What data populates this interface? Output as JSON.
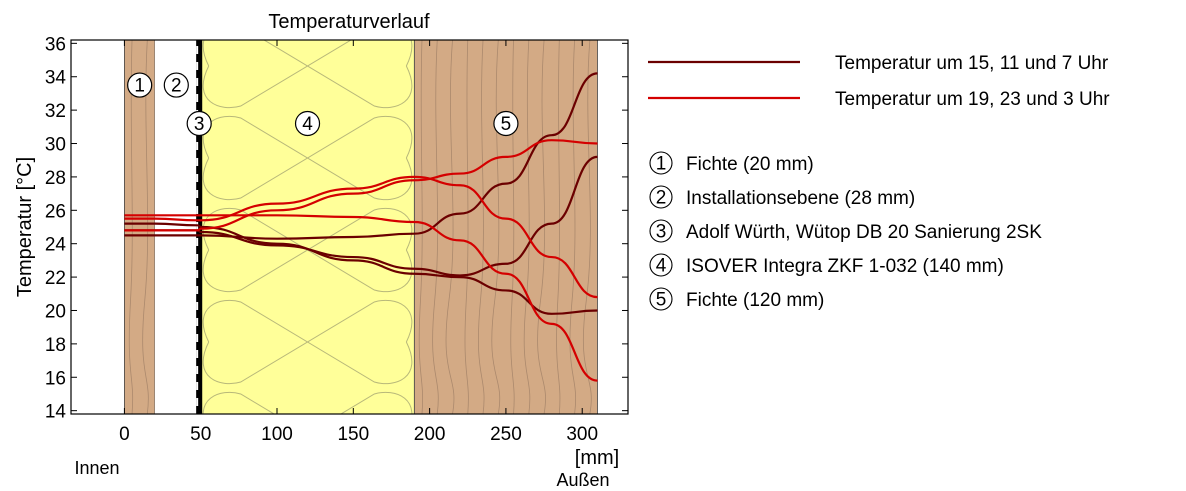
{
  "chart_data": {
    "type": "line",
    "title": "Temperaturverlauf",
    "xlabel": "[mm]",
    "ylabel": "Temperatur [°C]",
    "x_left_label": "Innen",
    "x_right_label": "Außen",
    "xlim": [
      -35,
      330
    ],
    "ylim": [
      13.8,
      36.2
    ],
    "xticks": [
      0,
      50,
      100,
      150,
      200,
      250,
      300
    ],
    "yticks": [
      14,
      16,
      18,
      20,
      22,
      24,
      26,
      28,
      30,
      32,
      34,
      36
    ],
    "grid": false,
    "legend_position": "right",
    "layers": [
      {
        "id": "1",
        "name": "Fichte (20 mm)",
        "x_range": [
          0,
          20
        ],
        "fill": "#d3aa85"
      },
      {
        "id": "2",
        "name": "Installationsebene (28 mm)",
        "x_range": [
          20,
          48
        ],
        "fill": "#ffffff"
      },
      {
        "id": "3",
        "name": "Adolf Würth, Wütop DB 20 Sanierung 2SK",
        "x_range": [
          48,
          50
        ],
        "fill": "#000000"
      },
      {
        "id": "4",
        "name": "ISOVER Integra ZKF 1-032 (140 mm)",
        "x_range": [
          50,
          190
        ],
        "fill": "#ffff99"
      },
      {
        "id": "5",
        "name": "Fichte (120 mm)",
        "x_range": [
          190,
          310
        ],
        "fill": "#d3aa85"
      }
    ],
    "series": [
      {
        "name": "Temperatur um 15, 11 und 7 Uhr",
        "color": "#6b0000",
        "lines": [
          {
            "x": [
              0,
              20,
              48,
              50,
              100,
              150,
              190,
              220,
              250,
              280,
              310
            ],
            "y": [
              24.5,
              24.5,
              24.5,
              24.5,
              24.3,
              24.4,
              24.6,
              25.8,
              27.6,
              30.5,
              34.2
            ]
          },
          {
            "x": [
              0,
              20,
              48,
              50,
              100,
              150,
              190,
              220,
              250,
              280,
              310
            ],
            "y": [
              24.8,
              24.8,
              24.8,
              24.7,
              23.9,
              23.2,
              22.5,
              22.1,
              22.8,
              25.2,
              29.2
            ]
          },
          {
            "x": [
              0,
              20,
              48,
              50,
              100,
              150,
              190,
              220,
              250,
              280,
              310
            ],
            "y": [
              25.2,
              25.2,
              25.1,
              25.0,
              24.0,
              23.0,
              22.2,
              22.0,
              21.2,
              19.8,
              20.0
            ]
          }
        ]
      },
      {
        "name": "Temperatur um 19, 23 und 3 Uhr",
        "color": "#d40000",
        "lines": [
          {
            "x": [
              0,
              20,
              48,
              50,
              100,
              150,
              190,
              220,
              250,
              280,
              310
            ],
            "y": [
              24.8,
              24.8,
              24.8,
              24.9,
              26.0,
              27.0,
              27.8,
              28.2,
              29.2,
              30.2,
              30.0
            ]
          },
          {
            "x": [
              0,
              20,
              48,
              50,
              100,
              150,
              190,
              220,
              250,
              280,
              310
            ],
            "y": [
              25.5,
              25.5,
              25.4,
              25.4,
              26.4,
              27.3,
              28.0,
              27.5,
              25.5,
              23.2,
              20.8
            ]
          },
          {
            "x": [
              0,
              20,
              48,
              50,
              100,
              150,
              190,
              220,
              250,
              280,
              310
            ],
            "y": [
              25.7,
              25.7,
              25.7,
              25.7,
              25.7,
              25.6,
              25.3,
              24.2,
              22.2,
              19.2,
              15.8
            ]
          }
        ]
      }
    ]
  }
}
